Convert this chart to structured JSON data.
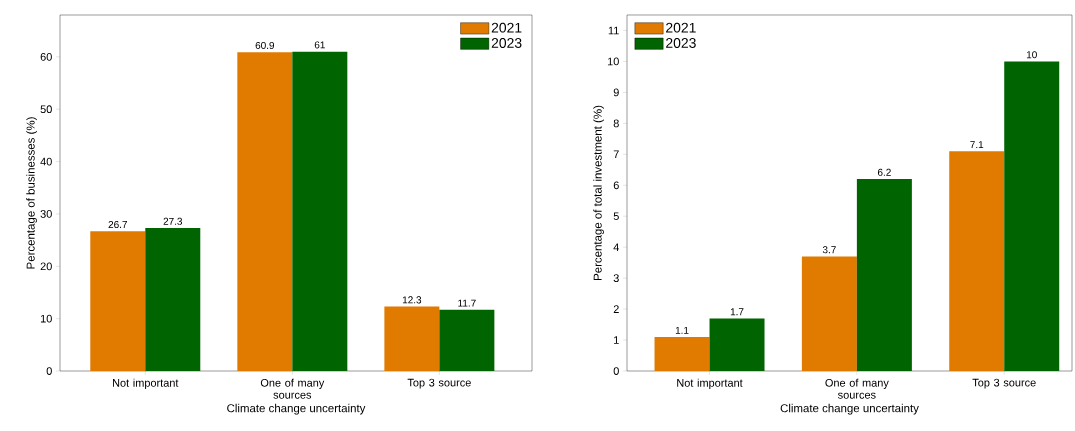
{
  "chart_data": [
    {
      "type": "bar",
      "categories": [
        "Not important",
        "One of many sources",
        "Top 3 source"
      ],
      "xlabel": "Climate change uncertainty",
      "ylabel": "Percentage of businesses (%)",
      "series": [
        {
          "name": "2021",
          "color": "#e07b00",
          "values": [
            26.7,
            60.9,
            12.3
          ]
        },
        {
          "name": "2023",
          "color": "#006400",
          "values": [
            27.3,
            61,
            11.7
          ]
        }
      ],
      "ylim": [
        0,
        68
      ],
      "yticks": [
        0,
        10,
        20,
        30,
        40,
        50,
        60
      ],
      "data_labels": true,
      "legend": "top right",
      "grid": false
    },
    {
      "type": "bar",
      "categories": [
        "Not important",
        "One of many sources",
        "Top 3 source"
      ],
      "xlabel": "Climate change uncertainty",
      "ylabel": "Percentage of total investment (%)",
      "series": [
        {
          "name": "2021",
          "color": "#e07b00",
          "values": [
            1.1,
            3.7,
            7.1
          ]
        },
        {
          "name": "2023",
          "color": "#006400",
          "values": [
            1.7,
            6.2,
            10
          ]
        }
      ],
      "ylim": [
        0,
        11.5
      ],
      "yticks": [
        0,
        1,
        2,
        3,
        4,
        5,
        6,
        7,
        8,
        9,
        10,
        11
      ],
      "data_labels": true,
      "legend": "top left",
      "grid": false
    }
  ]
}
